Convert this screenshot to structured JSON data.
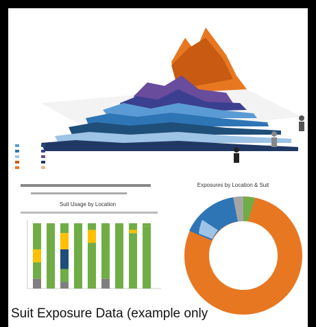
{
  "caption": "Suit Exposure Data (example only",
  "bar_panel": {
    "title": "Suit Usage by Location"
  },
  "donut_panel": {
    "title": "Exposures by Location & Suit"
  }
}
